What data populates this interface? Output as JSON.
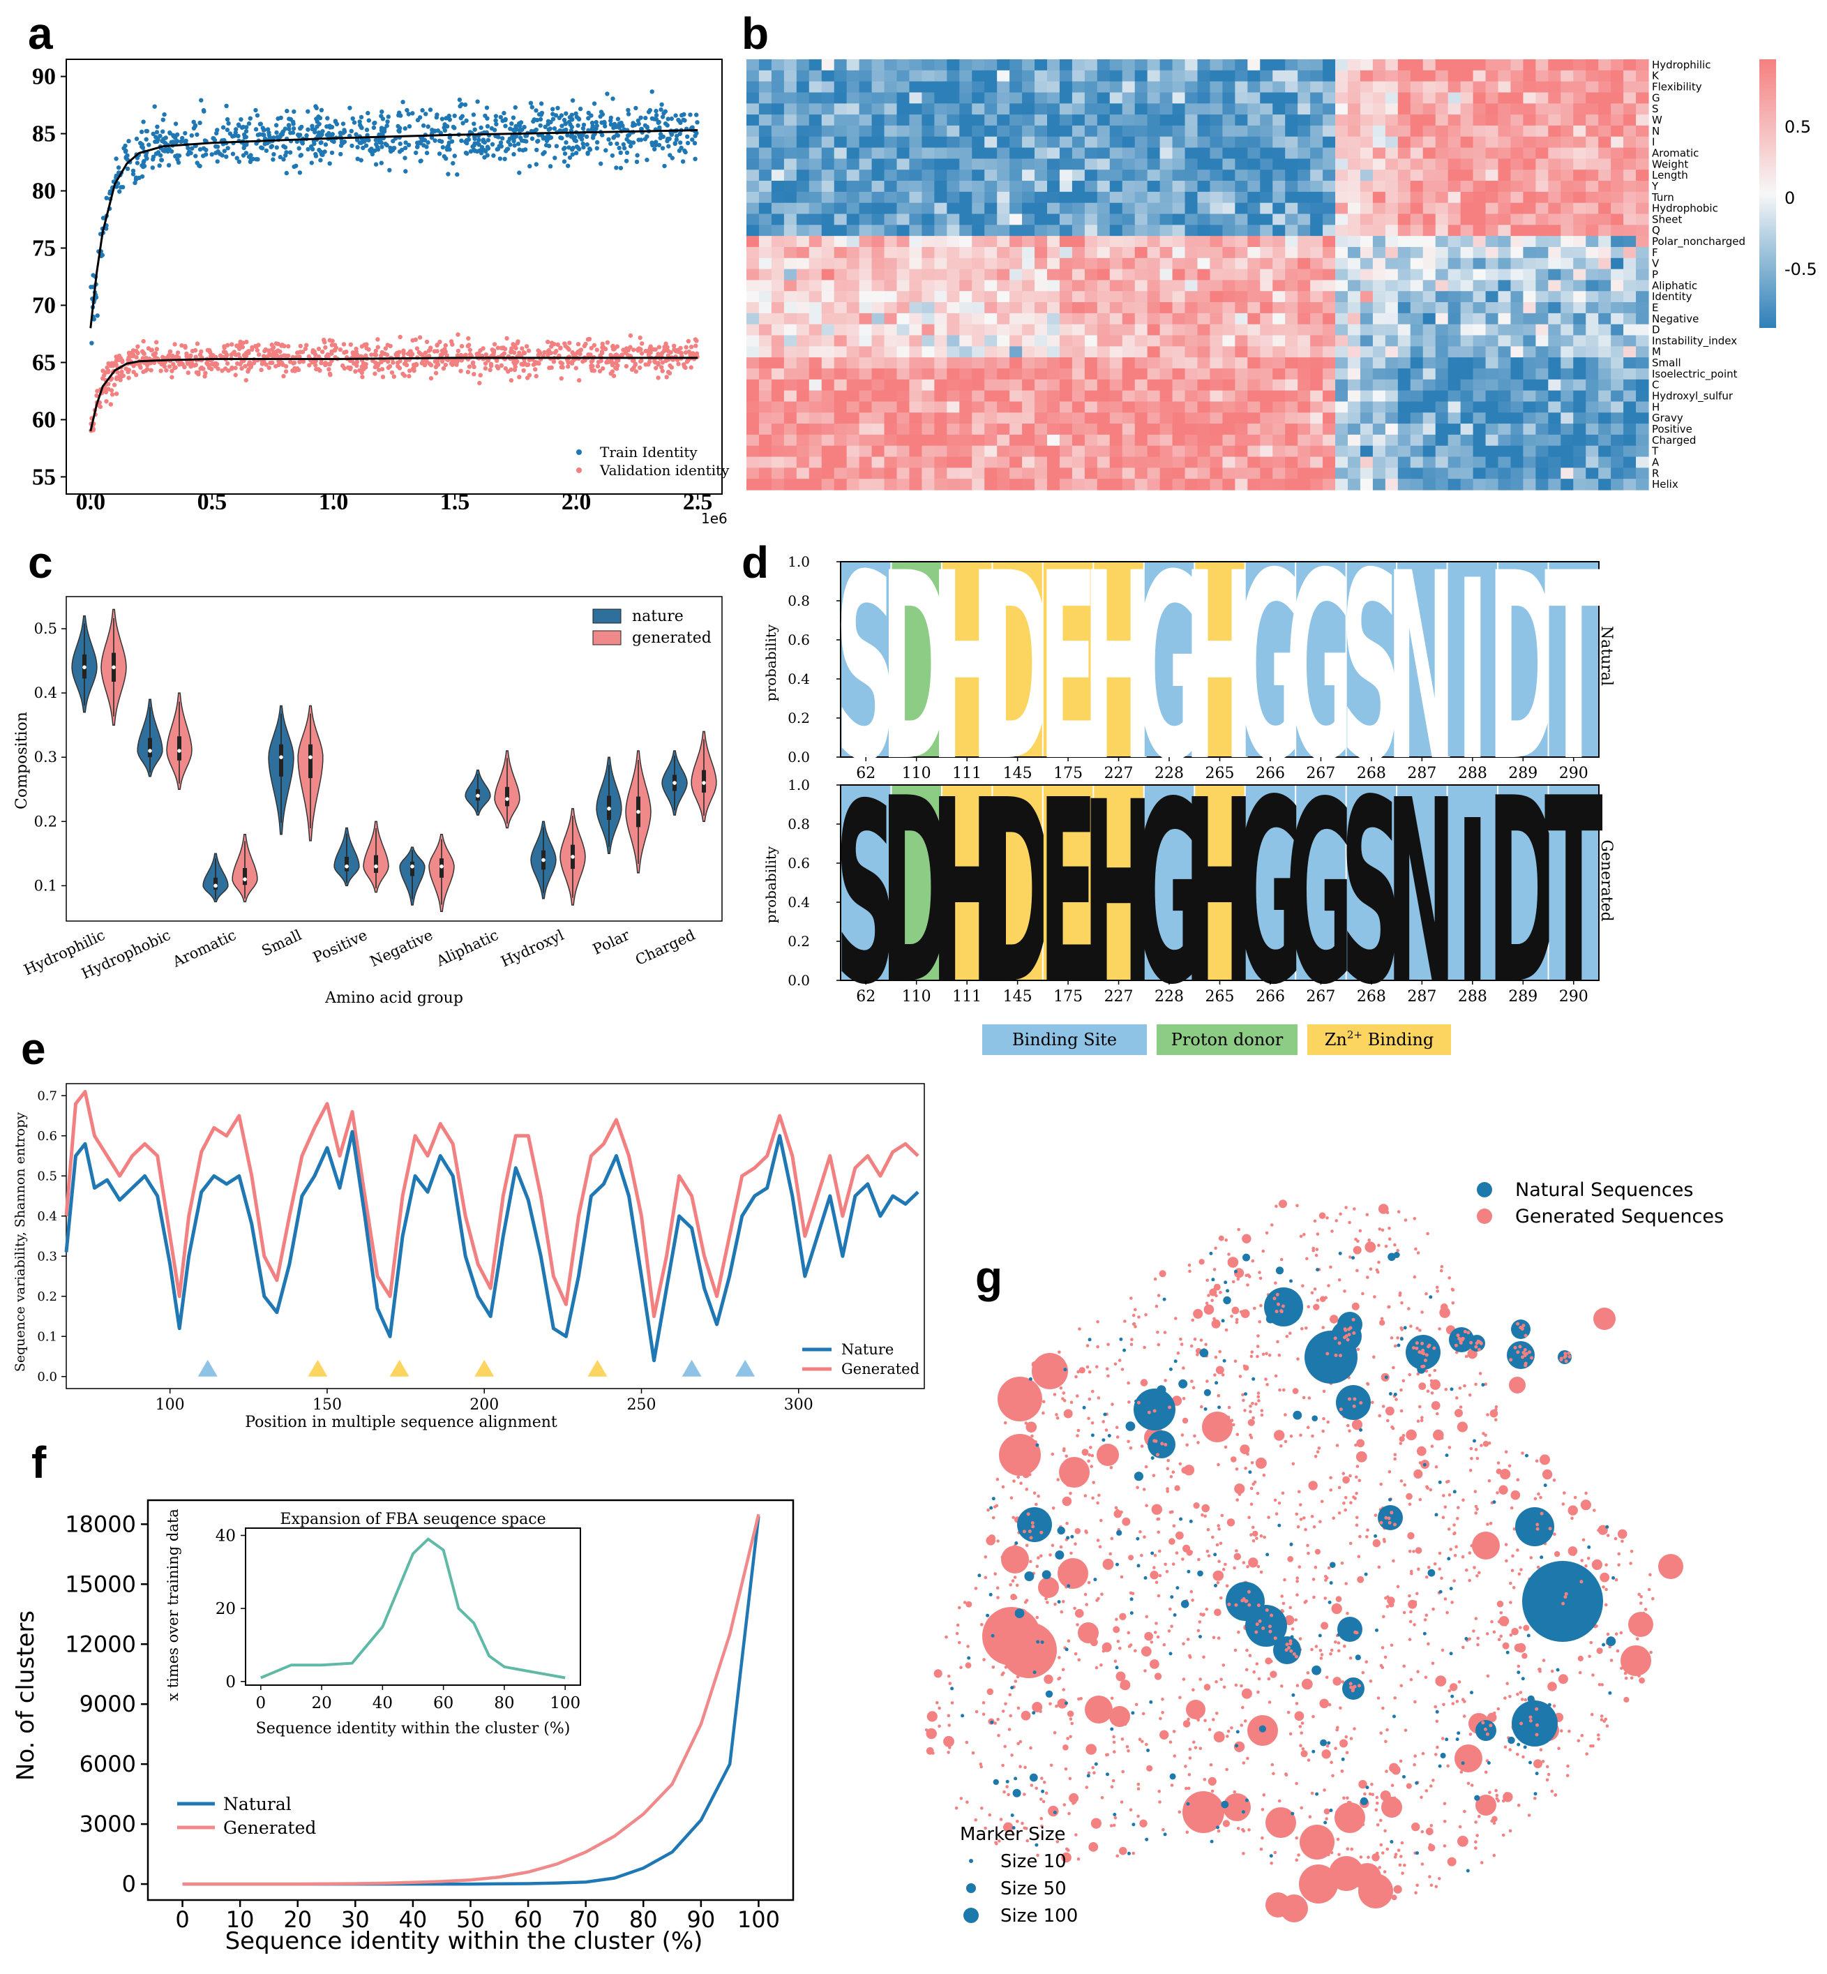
{
  "panel_labels": [
    "a",
    "b",
    "c",
    "d",
    "e",
    "f",
    "g"
  ],
  "chart_data": [
    {
      "panel": "a",
      "type": "scatter",
      "x_tick_labels": [
        "0.0",
        "0.5",
        "1.0",
        "1.5",
        "2.0",
        "2.5"
      ],
      "x_ticks": [
        0,
        500000,
        1000000,
        1500000,
        2000000,
        2500000
      ],
      "x_offset_label": "1e6",
      "y_ticks": [
        55,
        60,
        65,
        70,
        75,
        80,
        85,
        90
      ],
      "xlim": [
        -100000,
        2600000
      ],
      "ylim": [
        53.5,
        91.5
      ],
      "legend_position": "bottom-right",
      "series": [
        {
          "name": "Train Identity",
          "color": "#1f77b4",
          "fit": {
            "x": [
              0,
              25000,
              50000,
              100000,
              150000,
              200000,
              300000,
              500000,
              1000000,
              1500000,
              2000000,
              2500000
            ],
            "y": [
              68.0,
              72.8,
              76.4,
              80.6,
              82.4,
              83.3,
              83.9,
              84.2,
              84.6,
              84.9,
              85.1,
              85.3
            ]
          },
          "scatter_points_approx": 1000
        },
        {
          "name": "Validation identity",
          "color": "#f28080",
          "fit": {
            "x": [
              0,
              25000,
              50000,
              100000,
              150000,
              200000,
              300000,
              500000,
              1000000,
              1500000,
              2000000,
              2500000
            ],
            "y": [
              59.0,
              61.3,
              62.9,
              64.3,
              64.9,
              65.1,
              65.2,
              65.3,
              65.3,
              65.4,
              65.4,
              65.4
            ]
          },
          "scatter_points_approx": 1000
        }
      ]
    },
    {
      "panel": "b",
      "type": "heatmap",
      "row_labels": [
        "Hydrophilic",
        "K",
        "Flexibility",
        "G",
        "S",
        "W",
        "N",
        "I",
        "Aromatic",
        "Weight",
        "Length",
        "Y",
        "Turn",
        "Hydrophobic",
        "Sheet",
        "Q",
        "Polar_noncharged",
        "F",
        "V",
        "P",
        "Aliphatic",
        "Identity",
        "E",
        "Negative",
        "D",
        "Instability_index",
        "M",
        "Small",
        "Isoelectric_point",
        "C",
        "Hydroxyl_sulfur",
        "H",
        "Gravy",
        "Positive",
        "Charged",
        "T",
        "A",
        "R",
        "Helix"
      ],
      "colorbar_ticks": [
        "0.5",
        "0",
        "-0.5"
      ],
      "color_low": "#2d7fb8",
      "color_mid": "#f7f7f7",
      "color_high": "#f67f80",
      "columns_approx": 72
    },
    {
      "panel": "c",
      "type": "violin",
      "ylabel": "Composition",
      "xlabel": "Amino acid group",
      "y_ticks": [
        0.1,
        0.2,
        0.3,
        0.4,
        0.5
      ],
      "ylim": [
        0.045,
        0.55
      ],
      "categories": [
        "Hydrophilic",
        "Hydrophobic",
        "Aromatic",
        "Small",
        "Positive",
        "Negative",
        "Aliphatic",
        "Hydroxyl",
        "Polar",
        "Charged"
      ],
      "legend_position": "top-right",
      "series": [
        {
          "name": "nature",
          "color": "#2f6f9c",
          "median": [
            0.44,
            0.31,
            0.1,
            0.3,
            0.13,
            0.13,
            0.24,
            0.14,
            0.22,
            0.26
          ],
          "min": [
            0.37,
            0.27,
            0.075,
            0.18,
            0.1,
            0.07,
            0.21,
            0.08,
            0.15,
            0.21
          ],
          "max": [
            0.52,
            0.39,
            0.15,
            0.38,
            0.19,
            0.16,
            0.28,
            0.2,
            0.3,
            0.31
          ]
        },
        {
          "name": "generated",
          "color": "#f08a8a",
          "median": [
            0.44,
            0.31,
            0.11,
            0.3,
            0.13,
            0.13,
            0.235,
            0.145,
            0.215,
            0.26
          ],
          "min": [
            0.35,
            0.25,
            0.075,
            0.17,
            0.09,
            0.06,
            0.19,
            0.07,
            0.12,
            0.2
          ],
          "max": [
            0.53,
            0.4,
            0.18,
            0.38,
            0.2,
            0.18,
            0.31,
            0.22,
            0.31,
            0.34
          ]
        }
      ]
    },
    {
      "panel": "d",
      "type": "sequence-logo",
      "ylabel": "probability",
      "y_ticks": [
        0.0,
        0.2,
        0.4,
        0.6,
        0.8,
        1.0
      ],
      "positions": [
        "62",
        "110",
        "111",
        "145",
        "175",
        "227",
        "228",
        "265",
        "266",
        "267",
        "268",
        "287",
        "288",
        "289",
        "290"
      ],
      "residues": [
        "S",
        "D",
        "H",
        "D",
        "E",
        "H",
        "G",
        "H",
        "G",
        "G",
        "S",
        "N",
        "I",
        "D",
        "T"
      ],
      "site_type": [
        "binding",
        "proton",
        "zinc",
        "zinc",
        "zinc",
        "zinc",
        "binding",
        "zinc",
        "binding",
        "binding",
        "binding",
        "binding",
        "binding",
        "binding",
        "binding"
      ],
      "top_probability_natural": [
        0.98,
        0.99,
        0.99,
        0.99,
        0.99,
        0.99,
        0.98,
        0.99,
        0.99,
        0.99,
        0.99,
        0.99,
        0.95,
        0.99,
        0.99
      ],
      "top_probability_generated": [
        0.95,
        0.98,
        0.97,
        0.97,
        0.97,
        0.96,
        0.96,
        0.97,
        0.97,
        0.96,
        0.97,
        0.97,
        0.86,
        0.98,
        0.98
      ],
      "row_labels": [
        "Natural",
        "Generated"
      ],
      "legend": [
        {
          "label": "Binding Site",
          "color": "#8ec3e6"
        },
        {
          "label": "Proton donor",
          "color": "#8dcc84"
        },
        {
          "label_prefix": "Zn",
          "label_sup": "2+",
          "label_suffix": " Binding",
          "color": "#fcd561"
        }
      ]
    },
    {
      "panel": "e",
      "type": "line",
      "ylabel": "Sequence variability, Shannon entropy",
      "xlabel": "Position in multiple sequence alignment",
      "x_ticks": [
        100,
        150,
        200,
        250,
        300
      ],
      "y_ticks": [
        0.0,
        0.1,
        0.2,
        0.3,
        0.4,
        0.5,
        0.6,
        0.7
      ],
      "xlim": [
        67,
        340
      ],
      "ylim": [
        -0.03,
        0.73
      ],
      "legend_position": "bottom-right",
      "x": [
        67,
        70,
        73,
        76,
        80,
        84,
        88,
        92,
        96,
        100,
        103,
        106,
        110,
        114,
        118,
        122,
        126,
        130,
        134,
        138,
        142,
        146,
        150,
        154,
        158,
        162,
        166,
        170,
        174,
        178,
        182,
        186,
        190,
        194,
        198,
        202,
        206,
        210,
        214,
        218,
        222,
        226,
        230,
        234,
        238,
        242,
        246,
        250,
        254,
        258,
        262,
        266,
        270,
        274,
        278,
        282,
        286,
        290,
        294,
        298,
        302,
        306,
        310,
        314,
        318,
        322,
        326,
        330,
        334,
        338
      ],
      "series": [
        {
          "name": "Nature",
          "color": "#1f77b4",
          "values": [
            0.31,
            0.55,
            0.58,
            0.47,
            0.49,
            0.44,
            0.47,
            0.5,
            0.45,
            0.28,
            0.12,
            0.3,
            0.46,
            0.5,
            0.48,
            0.5,
            0.38,
            0.2,
            0.16,
            0.28,
            0.45,
            0.5,
            0.57,
            0.47,
            0.61,
            0.4,
            0.17,
            0.1,
            0.35,
            0.5,
            0.46,
            0.55,
            0.5,
            0.3,
            0.2,
            0.15,
            0.35,
            0.52,
            0.44,
            0.3,
            0.12,
            0.1,
            0.25,
            0.45,
            0.48,
            0.55,
            0.45,
            0.25,
            0.04,
            0.22,
            0.4,
            0.37,
            0.22,
            0.13,
            0.25,
            0.4,
            0.45,
            0.47,
            0.6,
            0.45,
            0.25,
            0.35,
            0.45,
            0.3,
            0.45,
            0.48,
            0.4,
            0.45,
            0.43,
            0.46
          ]
        },
        {
          "name": "Generated",
          "color": "#f28080",
          "values": [
            0.4,
            0.68,
            0.71,
            0.6,
            0.55,
            0.5,
            0.55,
            0.58,
            0.55,
            0.35,
            0.2,
            0.4,
            0.56,
            0.62,
            0.6,
            0.65,
            0.5,
            0.3,
            0.24,
            0.4,
            0.55,
            0.62,
            0.68,
            0.55,
            0.66,
            0.45,
            0.25,
            0.2,
            0.45,
            0.6,
            0.55,
            0.63,
            0.58,
            0.4,
            0.28,
            0.22,
            0.45,
            0.6,
            0.6,
            0.45,
            0.25,
            0.18,
            0.4,
            0.55,
            0.58,
            0.64,
            0.55,
            0.4,
            0.15,
            0.3,
            0.5,
            0.45,
            0.3,
            0.2,
            0.35,
            0.5,
            0.52,
            0.55,
            0.65,
            0.55,
            0.35,
            0.45,
            0.55,
            0.4,
            0.52,
            0.55,
            0.5,
            0.56,
            0.58,
            0.55
          ]
        }
      ],
      "markers": [
        {
          "x": 112,
          "color": "#8ec3e6"
        },
        {
          "x": 147,
          "color": "#fcd561"
        },
        {
          "x": 173,
          "color": "#fcd561"
        },
        {
          "x": 200,
          "color": "#fcd561"
        },
        {
          "x": 236,
          "color": "#fcd561"
        },
        {
          "x": 266,
          "color": "#8ec3e6"
        },
        {
          "x": 283,
          "color": "#8ec3e6"
        }
      ]
    },
    {
      "panel": "f",
      "type": "line",
      "ylabel": "No. of clusters",
      "xlabel": "Sequence identity within the cluster (%)",
      "x_ticks": [
        0,
        10,
        20,
        30,
        40,
        50,
        60,
        70,
        80,
        90,
        100
      ],
      "y_ticks": [
        0,
        3000,
        6000,
        9000,
        12000,
        15000,
        18000
      ],
      "xlim": [
        -6,
        106
      ],
      "ylim": [
        -800,
        19200
      ],
      "legend_position": "lower-left",
      "x": [
        0,
        5,
        10,
        15,
        20,
        25,
        30,
        35,
        40,
        45,
        50,
        55,
        60,
        65,
        70,
        75,
        80,
        85,
        90,
        95,
        100
      ],
      "series": [
        {
          "name": "Natural",
          "color": "#1f77b4",
          "values": [
            0,
            0,
            0,
            0,
            0,
            0,
            0,
            0,
            0,
            0,
            0,
            10,
            20,
            50,
            100,
            300,
            800,
            1600,
            3200,
            6000,
            18400
          ]
        },
        {
          "name": "Generated",
          "color": "#f08a8a",
          "values": [
            0,
            0,
            0,
            0,
            0,
            10,
            20,
            40,
            80,
            130,
            200,
            350,
            600,
            1000,
            1600,
            2400,
            3500,
            5000,
            8000,
            12500,
            18500
          ]
        }
      ],
      "inset": {
        "title": "Expansion of FBA seuqence space",
        "ylabel": "x times over training data",
        "xlabel": "Sequence identity within the cluster (%)",
        "x_ticks": [
          0,
          20,
          40,
          60,
          80,
          100
        ],
        "y_ticks": [
          0,
          20,
          40
        ],
        "xlim": [
          -5,
          105
        ],
        "ylim": [
          -1,
          42
        ],
        "x": [
          0,
          10,
          20,
          30,
          40,
          50,
          55,
          60,
          65,
          70,
          75,
          80,
          90,
          100
        ],
        "values": [
          1,
          4.5,
          4.5,
          5,
          15,
          35,
          39,
          36,
          20,
          16,
          7,
          4,
          2.5,
          1
        ],
        "color": "#5fb9a6"
      }
    },
    {
      "panel": "g",
      "type": "scatter",
      "legend_position": "top-right",
      "series": [
        {
          "name": "Natural Sequences",
          "color": "#1d78ab"
        },
        {
          "name": "Generated Sequences",
          "color": "#f48181"
        }
      ],
      "size_legend": {
        "title": "Marker Size",
        "entries": [
          "Size 10",
          "Size 50",
          "Size 100"
        ],
        "sizes": [
          10,
          50,
          100
        ]
      }
    }
  ]
}
